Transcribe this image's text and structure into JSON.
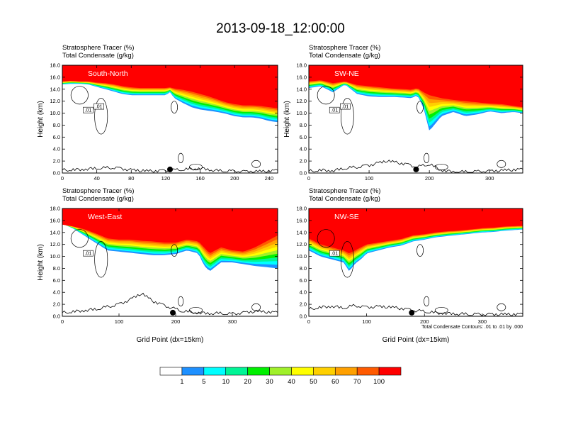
{
  "title": "2013-09-18_12:00:00",
  "colors": {
    "levels": [
      "#ffffff",
      "#1e90ff",
      "#00ffff",
      "#00f596",
      "#00f000",
      "#a0f02a",
      "#ffff00",
      "#ffd000",
      "#ffa000",
      "#ff5a00",
      "#ff0000"
    ],
    "contour": "#000000"
  },
  "colorbar": {
    "labels": [
      "1",
      "5",
      "10",
      "20",
      "30",
      "40",
      "50",
      "60",
      "70",
      "100"
    ]
  },
  "contour_note": "Total Condensate Contours: .01 to .01 by .000",
  "chart_data": [
    {
      "type": "heatmap",
      "panel_label": "South-North",
      "header_line1": "Stratosphere Tracer   (%)",
      "header_line2": "Total Condensate   (g/kg)",
      "ylabel": "Height (km)",
      "xlabel": "",
      "xlim": [
        0,
        250
      ],
      "ylim": [
        0,
        18
      ],
      "xticks": [
        "0",
        "40",
        "80",
        "120",
        "160",
        "200",
        "240"
      ],
      "yticks": [
        "0.0",
        "2.0",
        "4.0",
        "6.0",
        "8.0",
        "10.0",
        "12.0",
        "14.0",
        "16.0",
        "18.0"
      ],
      "contour_labels": [
        ".01",
        ".01"
      ],
      "profile": {
        "x": [
          0,
          10,
          20,
          30,
          40,
          50,
          60,
          70,
          80,
          90,
          100,
          110,
          120,
          125,
          130,
          140,
          150,
          160,
          170,
          180,
          190,
          200,
          210,
          220,
          230,
          240,
          250
        ],
        "h100": [
          15.3,
          15.4,
          15.3,
          15.3,
          15.1,
          15.0,
          14.8,
          14.5,
          14.3,
          14.2,
          14.2,
          14.2,
          14.2,
          14.3,
          14.1,
          13.9,
          13.6,
          13.2,
          12.8,
          12.3,
          11.8,
          11.5,
          11.3,
          11.3,
          11.2,
          11.0,
          10.8
        ],
        "h1": [
          14.8,
          14.9,
          14.9,
          14.8,
          14.4,
          14.0,
          13.6,
          13.2,
          13.0,
          13.0,
          13.0,
          13.0,
          13.0,
          13.5,
          12.5,
          11.7,
          11.0,
          10.6,
          10.4,
          10.2,
          9.9,
          9.5,
          9.3,
          9.3,
          9.1,
          8.7,
          8.5
        ]
      },
      "terrain": {
        "x": [
          0,
          20,
          40,
          60,
          80,
          100,
          120,
          140,
          160,
          180,
          200,
          220,
          240,
          250
        ],
        "z": [
          0.5,
          0.6,
          0.8,
          0.9,
          0.5,
          0.3,
          0.4,
          0.6,
          0.8,
          0.4,
          0.3,
          0.2,
          0.3,
          0.4
        ]
      },
      "marker_x": 125
    },
    {
      "type": "heatmap",
      "panel_label": "SW-NE",
      "header_line1": "Stratosphere Tracer   (%)",
      "header_line2": "Total Condensate   (g/kg)",
      "ylabel": "Height (km)",
      "xlabel": "",
      "xlim": [
        0,
        355
      ],
      "ylim": [
        0,
        18
      ],
      "xticks": [
        "0",
        "100",
        "200",
        "300"
      ],
      "yticks": [
        "0.0",
        "2.0",
        "4.0",
        "6.0",
        "8.0",
        "10.0",
        "12.0",
        "14.0",
        "16.0",
        "18.0"
      ],
      "contour_labels": [
        ".01",
        ".01"
      ],
      "profile": {
        "x": [
          0,
          20,
          40,
          60,
          80,
          100,
          120,
          140,
          160,
          170,
          180,
          190,
          200,
          220,
          240,
          260,
          280,
          300,
          320,
          340,
          355
        ],
        "h100": [
          15.3,
          15.5,
          15.0,
          15.3,
          14.7,
          14.5,
          14.3,
          14.1,
          14.0,
          13.9,
          14.2,
          13.5,
          13.0,
          12.5,
          12.2,
          12.0,
          11.8,
          11.6,
          11.5,
          11.2,
          11.0
        ],
        "h1": [
          14.2,
          14.5,
          13.5,
          14.8,
          13.2,
          12.8,
          12.7,
          12.7,
          12.6,
          12.5,
          13.0,
          11.0,
          7.0,
          9.5,
          10.2,
          9.5,
          9.8,
          10.3,
          10.0,
          10.2,
          10.0
        ]
      },
      "terrain": {
        "x": [
          0,
          20,
          40,
          60,
          80,
          100,
          130,
          160,
          180,
          200,
          220,
          240,
          260,
          300,
          355
        ],
        "z": [
          0.3,
          0.5,
          0.4,
          0.8,
          1.0,
          1.3,
          2.0,
          1.5,
          1.0,
          1.5,
          0.5,
          0.2,
          0.2,
          0.3,
          0.6
        ]
      },
      "marker_x": 178
    },
    {
      "type": "heatmap",
      "panel_label": "West-East",
      "header_line1": "Stratosphere Tracer   (%)",
      "header_line2": "Total Condensate   (g/kg)",
      "ylabel": "Height (km)",
      "xlabel": "Grid Point (dx=15km)",
      "xlim": [
        0,
        380
      ],
      "ylim": [
        0,
        18
      ],
      "xticks": [
        "0",
        "100",
        "200",
        "300"
      ],
      "yticks": [
        "0.0",
        "2.0",
        "4.0",
        "6.0",
        "8.0",
        "10.0",
        "12.0",
        "14.0",
        "16.0",
        "18.0"
      ],
      "contour_labels": [
        ".01"
      ],
      "profile": {
        "x": [
          0,
          20,
          40,
          60,
          80,
          100,
          120,
          140,
          160,
          180,
          200,
          220,
          240,
          250,
          260,
          280,
          300,
          320,
          340,
          360,
          380
        ],
        "h100": [
          15.3,
          15.0,
          14.5,
          13.8,
          13.0,
          12.8,
          12.8,
          12.6,
          12.5,
          12.3,
          12.3,
          12.8,
          12.5,
          11.5,
          10.5,
          11.5,
          11.0,
          10.8,
          11.5,
          12.5,
          13.5
        ],
        "h1": [
          15.5,
          14.6,
          13.4,
          12.2,
          11.0,
          10.8,
          10.6,
          10.4,
          10.2,
          10.2,
          10.4,
          11.0,
          10.5,
          8.5,
          7.5,
          9.0,
          9.0,
          8.7,
          8.4,
          8.2,
          8.0
        ]
      },
      "terrain": {
        "x": [
          0,
          20,
          40,
          60,
          80,
          100,
          120,
          140,
          160,
          180,
          200,
          210,
          220,
          240,
          260,
          280,
          300,
          320,
          340,
          380
        ],
        "z": [
          0.6,
          0.8,
          1.0,
          1.2,
          1.6,
          2.0,
          2.8,
          3.8,
          2.5,
          1.8,
          1.2,
          0.9,
          0.8,
          0.6,
          0.5,
          0.5,
          0.4,
          0.6,
          0.8,
          0.6
        ]
      },
      "marker_x": 195
    },
    {
      "type": "heatmap",
      "panel_label": "NW-SE",
      "header_line1": "Stratosphere Tracer   (%)",
      "header_line2": "Total Condensate   (g/kg)",
      "ylabel": "",
      "xlabel": "Grid Point (dx=15km)",
      "xlim": [
        0,
        370
      ],
      "ylim": [
        0,
        18
      ],
      "xticks": [
        "0",
        "100",
        "200",
        "300"
      ],
      "yticks": [
        "0.0",
        "2.0",
        "4.0",
        "6.0",
        "8.0",
        "10.0",
        "12.0",
        "14.0",
        "16.0",
        "18.0"
      ],
      "contour_labels": [
        ".01"
      ],
      "profile": {
        "x": [
          0,
          20,
          40,
          60,
          70,
          80,
          90,
          100,
          120,
          140,
          160,
          180,
          200,
          220,
          240,
          260,
          280,
          300,
          320,
          340,
          370
        ],
        "h100": [
          13.0,
          12.0,
          11.5,
          11.0,
          10.5,
          11.0,
          11.5,
          12.0,
          12.3,
          12.6,
          12.9,
          13.5,
          13.7,
          14.0,
          14.2,
          14.3,
          14.5,
          14.7,
          14.8,
          15.0,
          15.1
        ],
        "h1": [
          11.0,
          10.0,
          9.5,
          9.0,
          7.5,
          8.8,
          9.5,
          10.5,
          11.0,
          11.5,
          11.8,
          12.5,
          12.8,
          13.2,
          13.4,
          13.6,
          13.8,
          14.0,
          14.1,
          14.3,
          14.5
        ]
      },
      "terrain": {
        "x": [
          0,
          20,
          40,
          60,
          80,
          100,
          120,
          140,
          160,
          180,
          200,
          220,
          240,
          260,
          300,
          340,
          370
        ],
        "z": [
          1.2,
          1.5,
          1.7,
          1.4,
          1.8,
          1.5,
          1.6,
          1.5,
          1.3,
          1.0,
          0.8,
          0.6,
          0.5,
          0.4,
          0.3,
          0.3,
          0.3
        ]
      },
      "marker_x": 178
    }
  ]
}
